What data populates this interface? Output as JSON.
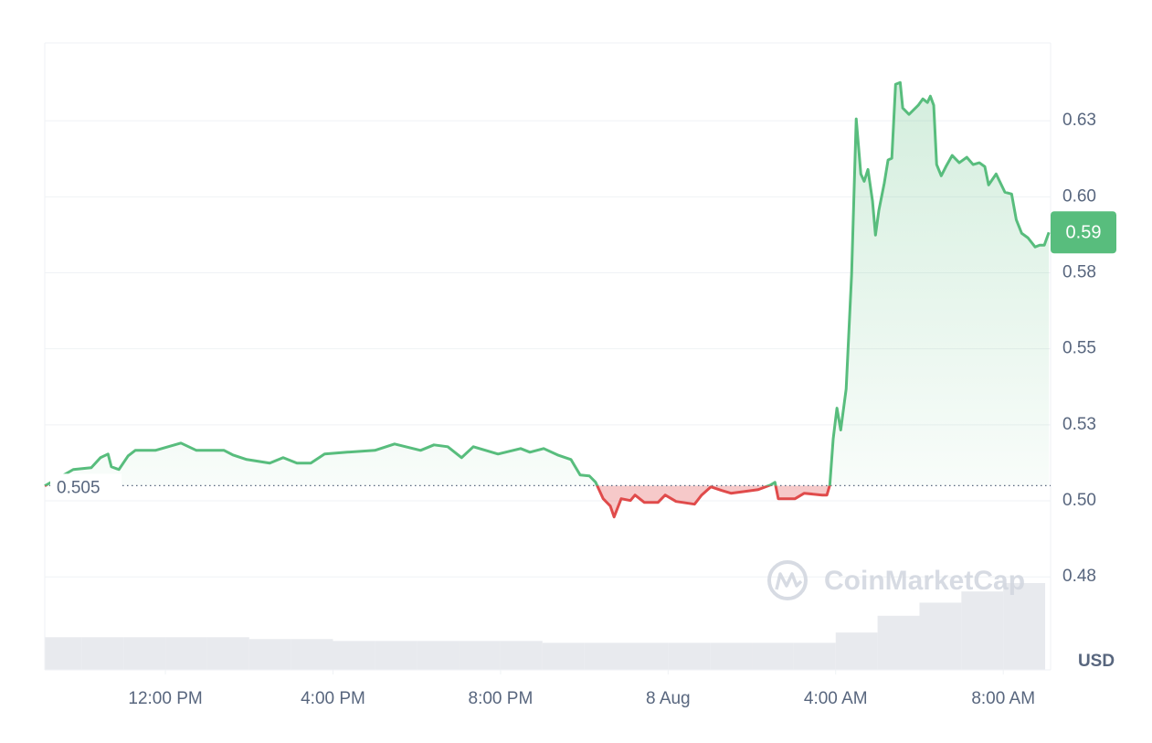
{
  "chart_data": {
    "type": "line",
    "x": [
      9.12,
      9.8,
      10.23,
      10.45,
      10.63,
      10.71,
      10.89,
      11.11,
      11.28,
      11.76,
      12.37,
      12.74,
      13.4,
      13.61,
      13.94,
      14.49,
      14.81,
      15.14,
      15.47,
      15.8,
      16.34,
      17.0,
      17.47,
      18.09,
      18.41,
      18.74,
      19.07,
      19.35,
      19.94,
      20.48,
      20.7,
      21.03,
      21.36,
      21.68,
      21.9,
      22.12,
      22.27,
      22.45,
      22.62,
      22.71,
      22.88,
      23.1,
      23.21,
      23.43,
      23.76,
      23.93,
      24.19,
      24.63,
      24.8,
      25.02,
      25.28,
      25.5,
      25.83,
      26.15,
      26.44,
      26.55,
      26.63,
      27.03,
      27.25,
      27.68,
      27.79,
      27.86,
      27.94,
      28.03,
      28.12,
      28.25,
      28.38,
      28.49,
      28.6,
      28.68,
      28.77,
      28.88,
      28.95,
      29.03,
      29.16,
      29.25,
      29.34,
      29.43,
      29.54,
      29.6,
      29.75,
      29.97,
      30.08,
      30.19,
      30.26,
      30.34,
      30.41,
      30.52,
      30.63,
      30.78,
      30.95,
      31.13,
      31.28,
      31.43,
      31.56,
      31.65,
      31.83,
      32.04,
      32.2,
      32.31,
      32.44,
      32.59,
      32.76,
      32.87,
      32.98,
      33.09
    ],
    "values": [
      0.5049,
      0.5103,
      0.5109,
      0.5142,
      0.5154,
      0.5112,
      0.5103,
      0.5148,
      0.5166,
      0.5166,
      0.519,
      0.5166,
      0.5166,
      0.5151,
      0.5136,
      0.5124,
      0.5142,
      0.5124,
      0.5124,
      0.5154,
      0.516,
      0.5166,
      0.5187,
      0.5166,
      0.5184,
      0.5178,
      0.5142,
      0.5178,
      0.5154,
      0.5172,
      0.516,
      0.5172,
      0.5151,
      0.5136,
      0.5085,
      0.5082,
      0.5061,
      0.5007,
      0.4983,
      0.4947,
      0.5007,
      0.5001,
      0.5019,
      0.4995,
      0.4995,
      0.5019,
      0.4998,
      0.4989,
      0.5019,
      0.5046,
      0.5034,
      0.5025,
      0.5031,
      0.5037,
      0.5052,
      0.5061,
      0.5007,
      0.5007,
      0.5025,
      0.5019,
      0.5019,
      0.5052,
      0.5203,
      0.5305,
      0.5233,
      0.5368,
      0.5744,
      0.6256,
      0.6075,
      0.6051,
      0.609,
      0.5985,
      0.5874,
      0.5955,
      0.6045,
      0.6121,
      0.6127,
      0.637,
      0.6376,
      0.6292,
      0.6271,
      0.6301,
      0.6322,
      0.631,
      0.6331,
      0.6301,
      0.6106,
      0.6069,
      0.6099,
      0.6136,
      0.6112,
      0.613,
      0.6106,
      0.6112,
      0.6099,
      0.6039,
      0.6075,
      0.6015,
      0.6009,
      0.5925,
      0.588,
      0.5865,
      0.5835,
      0.5841,
      0.5841,
      0.5883
    ],
    "baseline": 0.505,
    "up_color": "#58bd7d",
    "down_color": "#e04b4b",
    "current_price_label": "0.59",
    "volume": {
      "color": "#e8eaee",
      "x": [
        9.5,
        10.5,
        11.5,
        12.5,
        13.5,
        14.5,
        15.5,
        16.5,
        17.5,
        18.5,
        19.5,
        20.5,
        21.5,
        22.5,
        23.5,
        24.5,
        25.5,
        26.5,
        27.5,
        28.5,
        29.5,
        30.5,
        31.5,
        32.5
      ],
      "values": [
        35,
        35,
        35,
        35,
        35,
        33,
        33,
        31,
        31,
        31,
        31,
        31,
        29,
        29,
        29,
        29,
        29,
        29,
        29,
        40,
        58,
        72,
        84,
        93
      ]
    },
    "xlim": [
      9.12,
      33.13
    ],
    "xticks": [
      {
        "value": 12,
        "label": "12:00 PM"
      },
      {
        "value": 16,
        "label": "4:00 PM"
      },
      {
        "value": 20,
        "label": "8:00 PM"
      },
      {
        "value": 24,
        "label": "8 Aug"
      },
      {
        "value": 28,
        "label": "4:00 AM"
      },
      {
        "value": 32,
        "label": "8:00 AM"
      }
    ],
    "ylim": [
      0.4444,
      0.6506
    ],
    "yticks": [
      {
        "value": 0.475,
        "label": "0.48"
      },
      {
        "value": 0.5,
        "label": "0.50"
      },
      {
        "value": 0.525,
        "label": "0.53"
      },
      0.55,
      {
        "value": 0.575,
        "label": "0.58"
      },
      {
        "value": 0.6,
        "label": "0.60"
      },
      {
        "value": 0.625,
        "label": "0.63"
      }
    ],
    "y_unit": "USD",
    "grid": true,
    "watermark": "CoinMarketCap"
  }
}
